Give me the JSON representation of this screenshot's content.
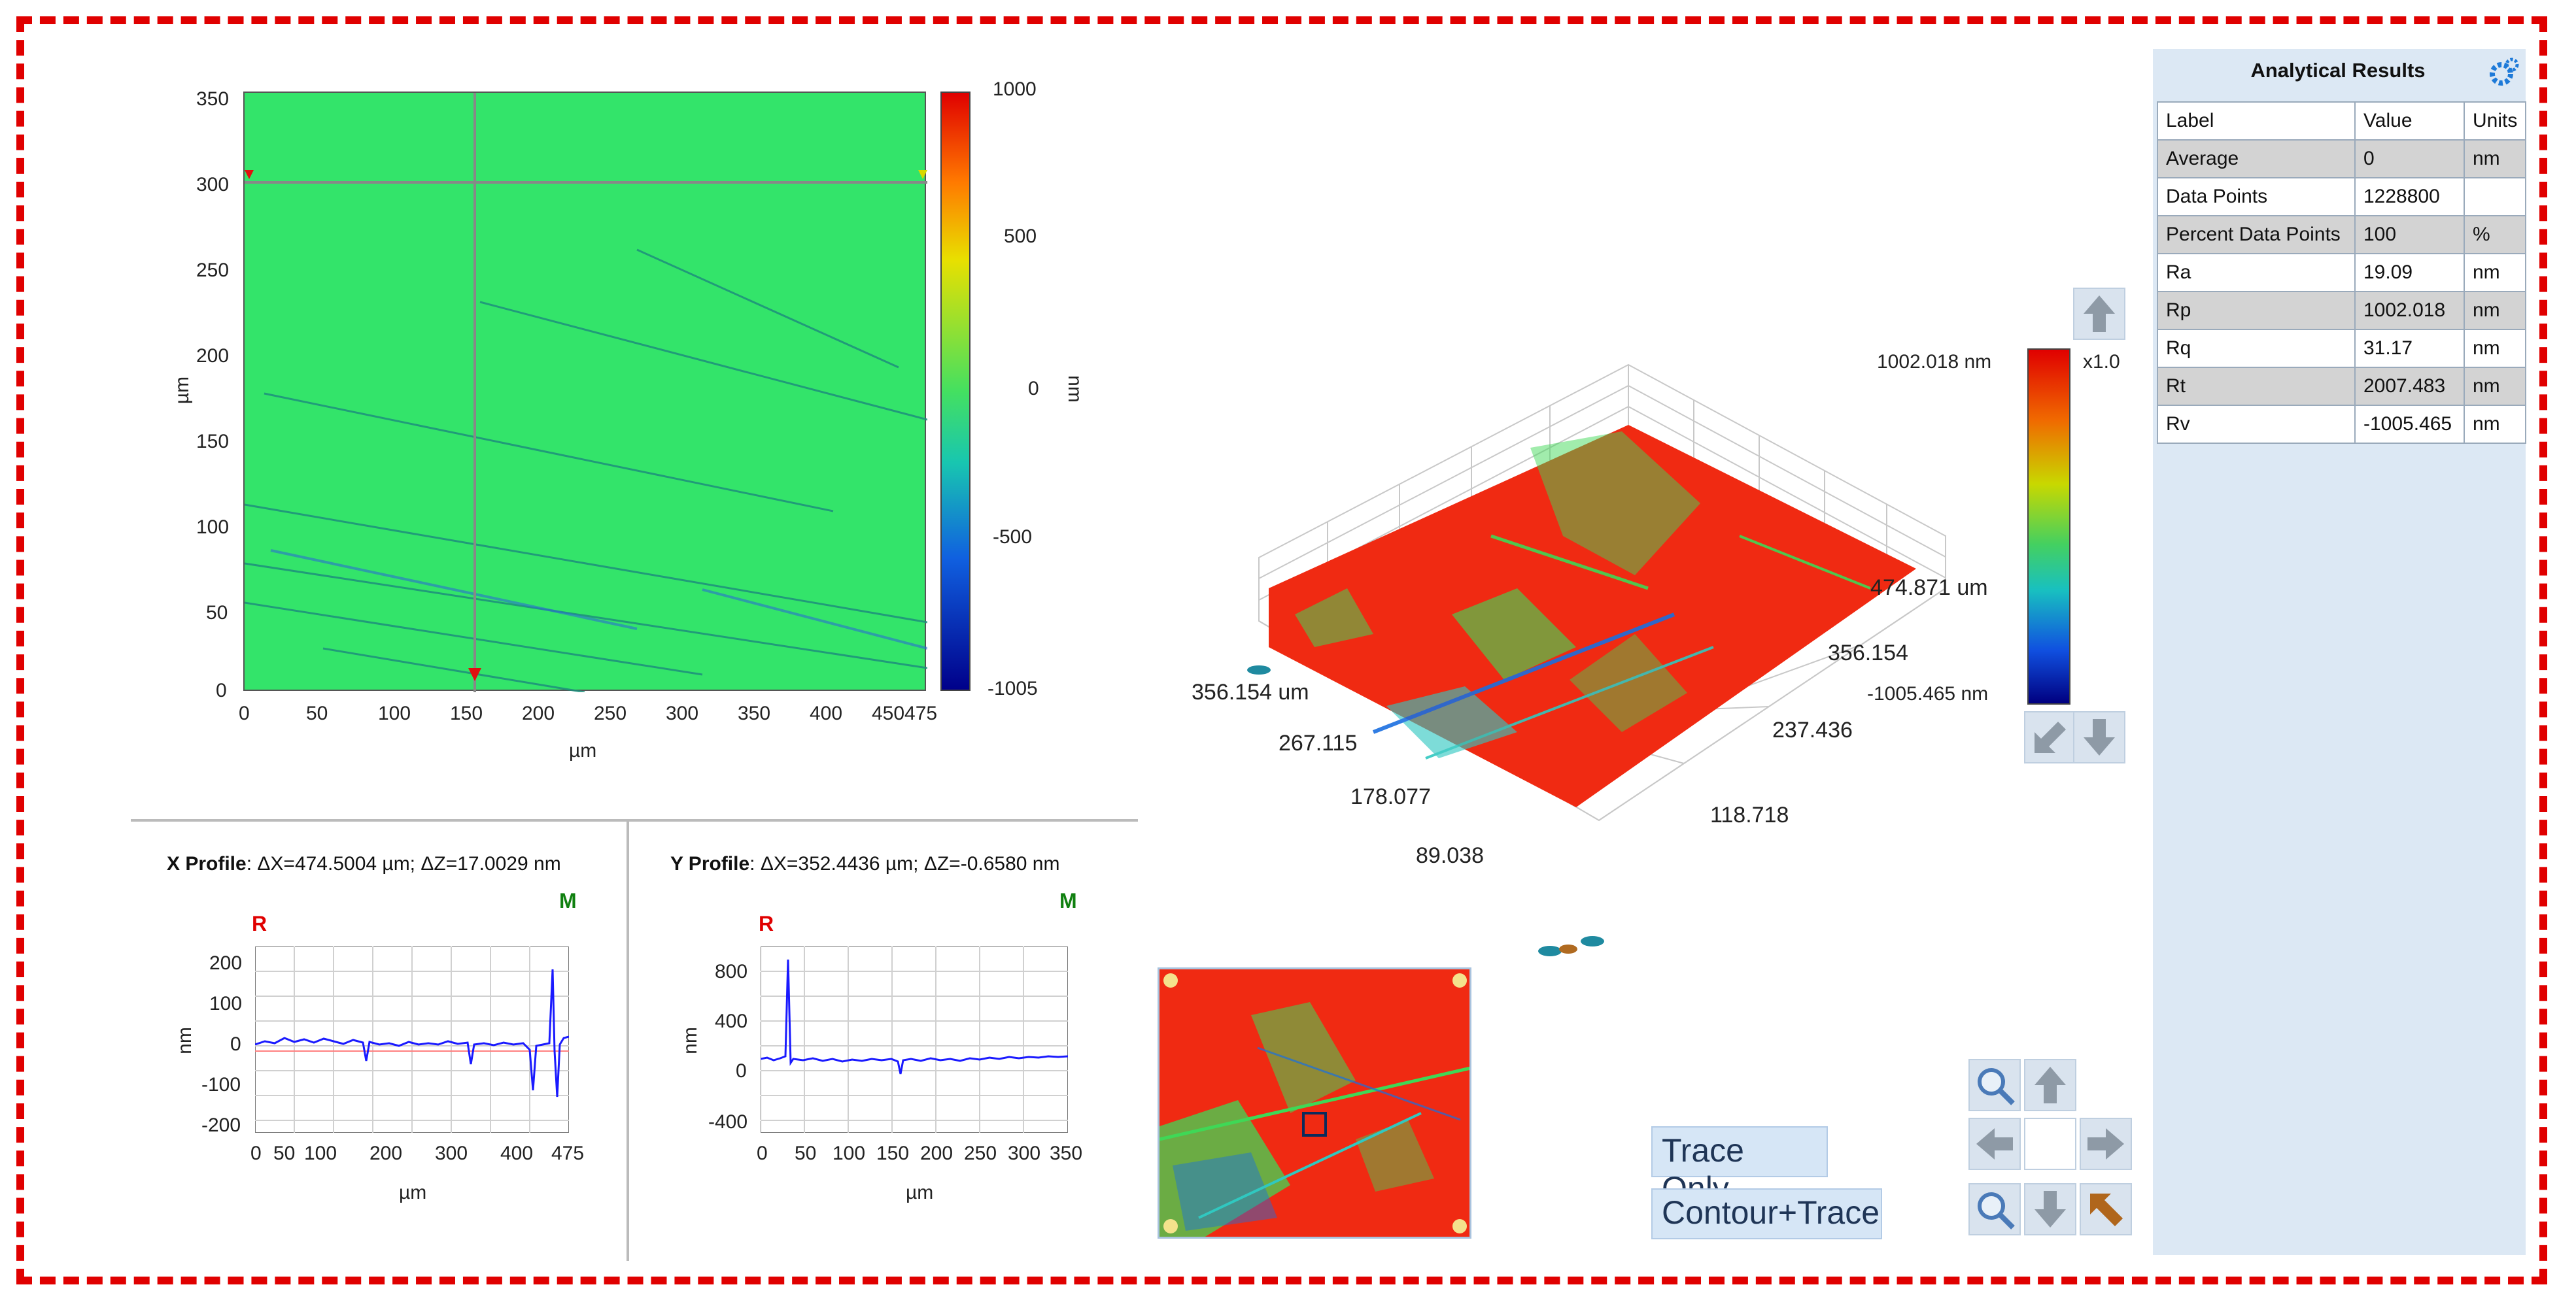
{
  "contour_map": {
    "y_ticks": [
      "350",
      "300",
      "250",
      "200",
      "150",
      "100",
      "50",
      "0"
    ],
    "x_ticks": [
      "0",
      "50",
      "100",
      "150",
      "200",
      "250",
      "300",
      "350",
      "400",
      "450475"
    ],
    "y_label": "µm",
    "x_label": "µm",
    "colorbar_ticks": [
      "1000",
      "500",
      "0",
      "-500",
      "-1005"
    ],
    "colorbar_unit": "nm",
    "base_color": "#33e46a"
  },
  "x_profile": {
    "title_bold": "X Profile",
    "title_rest": ": ΔX=474.5004 µm; ΔZ=17.0029 nm",
    "marker_r": "R",
    "marker_m": "M",
    "y_ticks": [
      "200",
      "100",
      "0",
      "-100",
      "-200"
    ],
    "x_ticks": [
      "0",
      "50",
      "100",
      "200",
      "300",
      "400",
      "475"
    ],
    "y_label": "nm",
    "x_label": "µm"
  },
  "y_profile": {
    "title_bold": "Y Profile",
    "title_rest": ": ΔX=352.4436 µm; ΔZ=-0.6580 nm",
    "marker_r": "R",
    "marker_m": "M",
    "y_ticks": [
      "800",
      "400",
      "0",
      "-400"
    ],
    "x_ticks": [
      "0",
      "50",
      "100",
      "150",
      "200",
      "250",
      "300",
      "350"
    ],
    "y_label": "nm",
    "x_label": "µm"
  },
  "view3d": {
    "labels_left": [
      "356.154 um",
      "267.115",
      "178.077",
      "89.038"
    ],
    "labels_right": [
      "474.871 um",
      "356.154",
      "237.436",
      "118.718"
    ],
    "scale_max": "1002.018 nm",
    "scale_min": "-1005.465 nm",
    "scale_factor": "x1.0"
  },
  "buttons": {
    "trace_only": "Trace Only",
    "contour_trace": "Contour+Trace"
  },
  "results": {
    "title": "Analytical Results",
    "headers": [
      "Label",
      "Value",
      "Units"
    ],
    "rows": [
      [
        "Average",
        "0",
        "nm"
      ],
      [
        "Data Points",
        "1228800",
        ""
      ],
      [
        "Percent Data Points",
        "100",
        "%"
      ],
      [
        "Ra",
        "19.09",
        "nm"
      ],
      [
        "Rp",
        "1002.018",
        "nm"
      ],
      [
        "Rq",
        "31.17",
        "nm"
      ],
      [
        "Rt",
        "2007.483",
        "nm"
      ],
      [
        "Rv",
        "-1005.465",
        "nm"
      ]
    ]
  },
  "colors": {
    "frame": "#e00000",
    "panel": "#dce8f4",
    "profile_line": "#1a1aff",
    "surface_red": "#f02a12",
    "surface_green": "#3fd856"
  }
}
